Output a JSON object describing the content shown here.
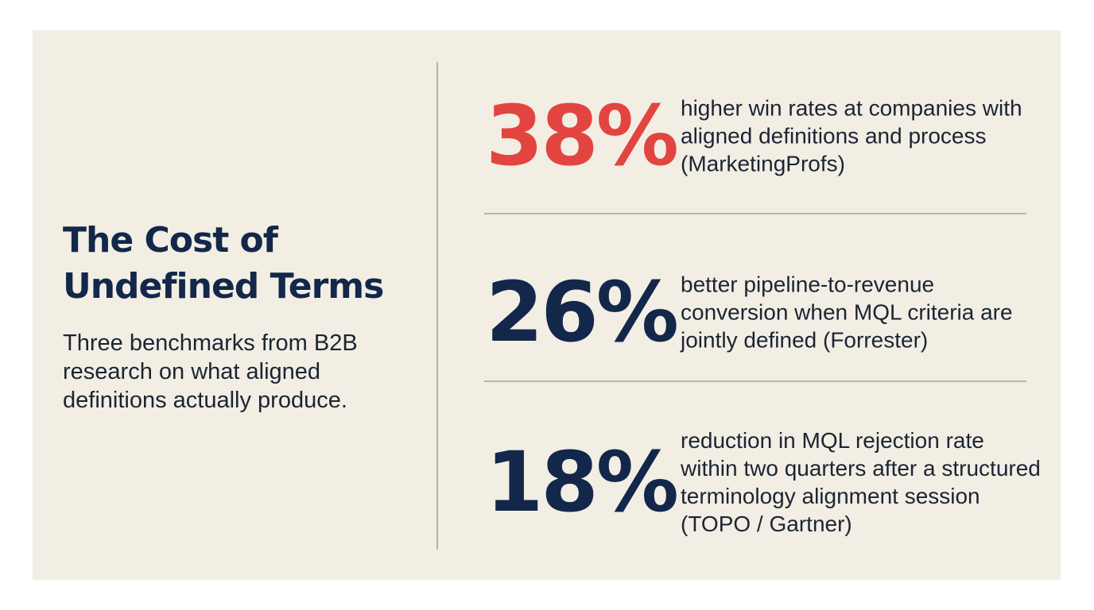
{
  "header": {
    "title_line1": "The Cost of",
    "title_line2": "Undefined Terms",
    "subtitle": "Three benchmarks from B2B research on what aligned definitions actually produce."
  },
  "stats": [
    {
      "value": "38%",
      "description": "higher win rates at companies with aligned definitions and process (MarketingProfs)",
      "color": "#e2453f"
    },
    {
      "value": "26%",
      "description": "better pipeline-to-revenue conversion when MQL criteria are jointly defined (Forrester)",
      "color": "#13274a"
    },
    {
      "value": "18%",
      "description": "reduction in MQL rejection rate within two quarters after a structured terminology alignment session (TOPO / Gartner)",
      "color": "#13274a"
    }
  ],
  "colors": {
    "background": "#f2eee4",
    "accent": "#e2453f",
    "navy": "#13274a",
    "divider": "#bdb59e"
  }
}
